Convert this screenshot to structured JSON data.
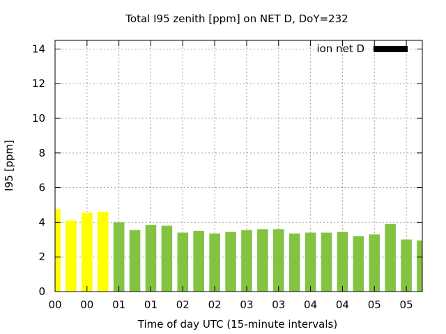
{
  "chart_data": {
    "type": "bar",
    "title": "Total I95 zenith [ppm] on NET D, DoY=232",
    "xlabel": "Time of day UTC (15-minute intervals)",
    "ylabel": "I95 [ppm]",
    "ylim": [
      0,
      14.5
    ],
    "yticks": [
      0,
      2,
      4,
      6,
      8,
      10,
      12,
      14
    ],
    "grid": true,
    "legend": {
      "position": "top-right",
      "entries": [
        {
          "label": "ion net D",
          "color": "#000000"
        }
      ]
    },
    "xlim": [
      0,
      5.75
    ],
    "xticks": [
      {
        "x": 0.0,
        "label": "00"
      },
      {
        "x": 0.5,
        "label": "00"
      },
      {
        "x": 1.0,
        "label": "01"
      },
      {
        "x": 1.5,
        "label": "01"
      },
      {
        "x": 2.0,
        "label": "02"
      },
      {
        "x": 2.5,
        "label": "02"
      },
      {
        "x": 3.0,
        "label": "03"
      },
      {
        "x": 3.5,
        "label": "03"
      },
      {
        "x": 4.0,
        "label": "04"
      },
      {
        "x": 4.5,
        "label": "04"
      },
      {
        "x": 5.0,
        "label": "05"
      },
      {
        "x": 5.5,
        "label": "05"
      }
    ],
    "bar_width": 0.17,
    "bars": [
      {
        "x": 0.0,
        "value": 4.75,
        "color": "#ffff00"
      },
      {
        "x": 0.25,
        "value": 4.1,
        "color": "#ffff00"
      },
      {
        "x": 0.5,
        "value": 4.55,
        "color": "#ffff00"
      },
      {
        "x": 0.75,
        "value": 4.6,
        "color": "#ffff00"
      },
      {
        "x": 1.0,
        "value": 4.0,
        "color": "#83c341"
      },
      {
        "x": 1.25,
        "value": 3.55,
        "color": "#83c341"
      },
      {
        "x": 1.5,
        "value": 3.85,
        "color": "#83c341"
      },
      {
        "x": 1.75,
        "value": 3.8,
        "color": "#83c341"
      },
      {
        "x": 2.0,
        "value": 3.4,
        "color": "#83c341"
      },
      {
        "x": 2.25,
        "value": 3.5,
        "color": "#83c341"
      },
      {
        "x": 2.5,
        "value": 3.35,
        "color": "#83c341"
      },
      {
        "x": 2.75,
        "value": 3.45,
        "color": "#83c341"
      },
      {
        "x": 3.0,
        "value": 3.55,
        "color": "#83c341"
      },
      {
        "x": 3.25,
        "value": 3.6,
        "color": "#83c341"
      },
      {
        "x": 3.5,
        "value": 3.6,
        "color": "#83c341"
      },
      {
        "x": 3.75,
        "value": 3.35,
        "color": "#83c341"
      },
      {
        "x": 4.0,
        "value": 3.4,
        "color": "#83c341"
      },
      {
        "x": 4.25,
        "value": 3.4,
        "color": "#83c341"
      },
      {
        "x": 4.5,
        "value": 3.45,
        "color": "#83c341"
      },
      {
        "x": 4.75,
        "value": 3.2,
        "color": "#83c341"
      },
      {
        "x": 5.0,
        "value": 3.3,
        "color": "#83c341"
      },
      {
        "x": 5.25,
        "value": 3.9,
        "color": "#83c341"
      },
      {
        "x": 5.5,
        "value": 3.0,
        "color": "#83c341"
      },
      {
        "x": 5.75,
        "value": 2.95,
        "color": "#83c341"
      }
    ]
  }
}
